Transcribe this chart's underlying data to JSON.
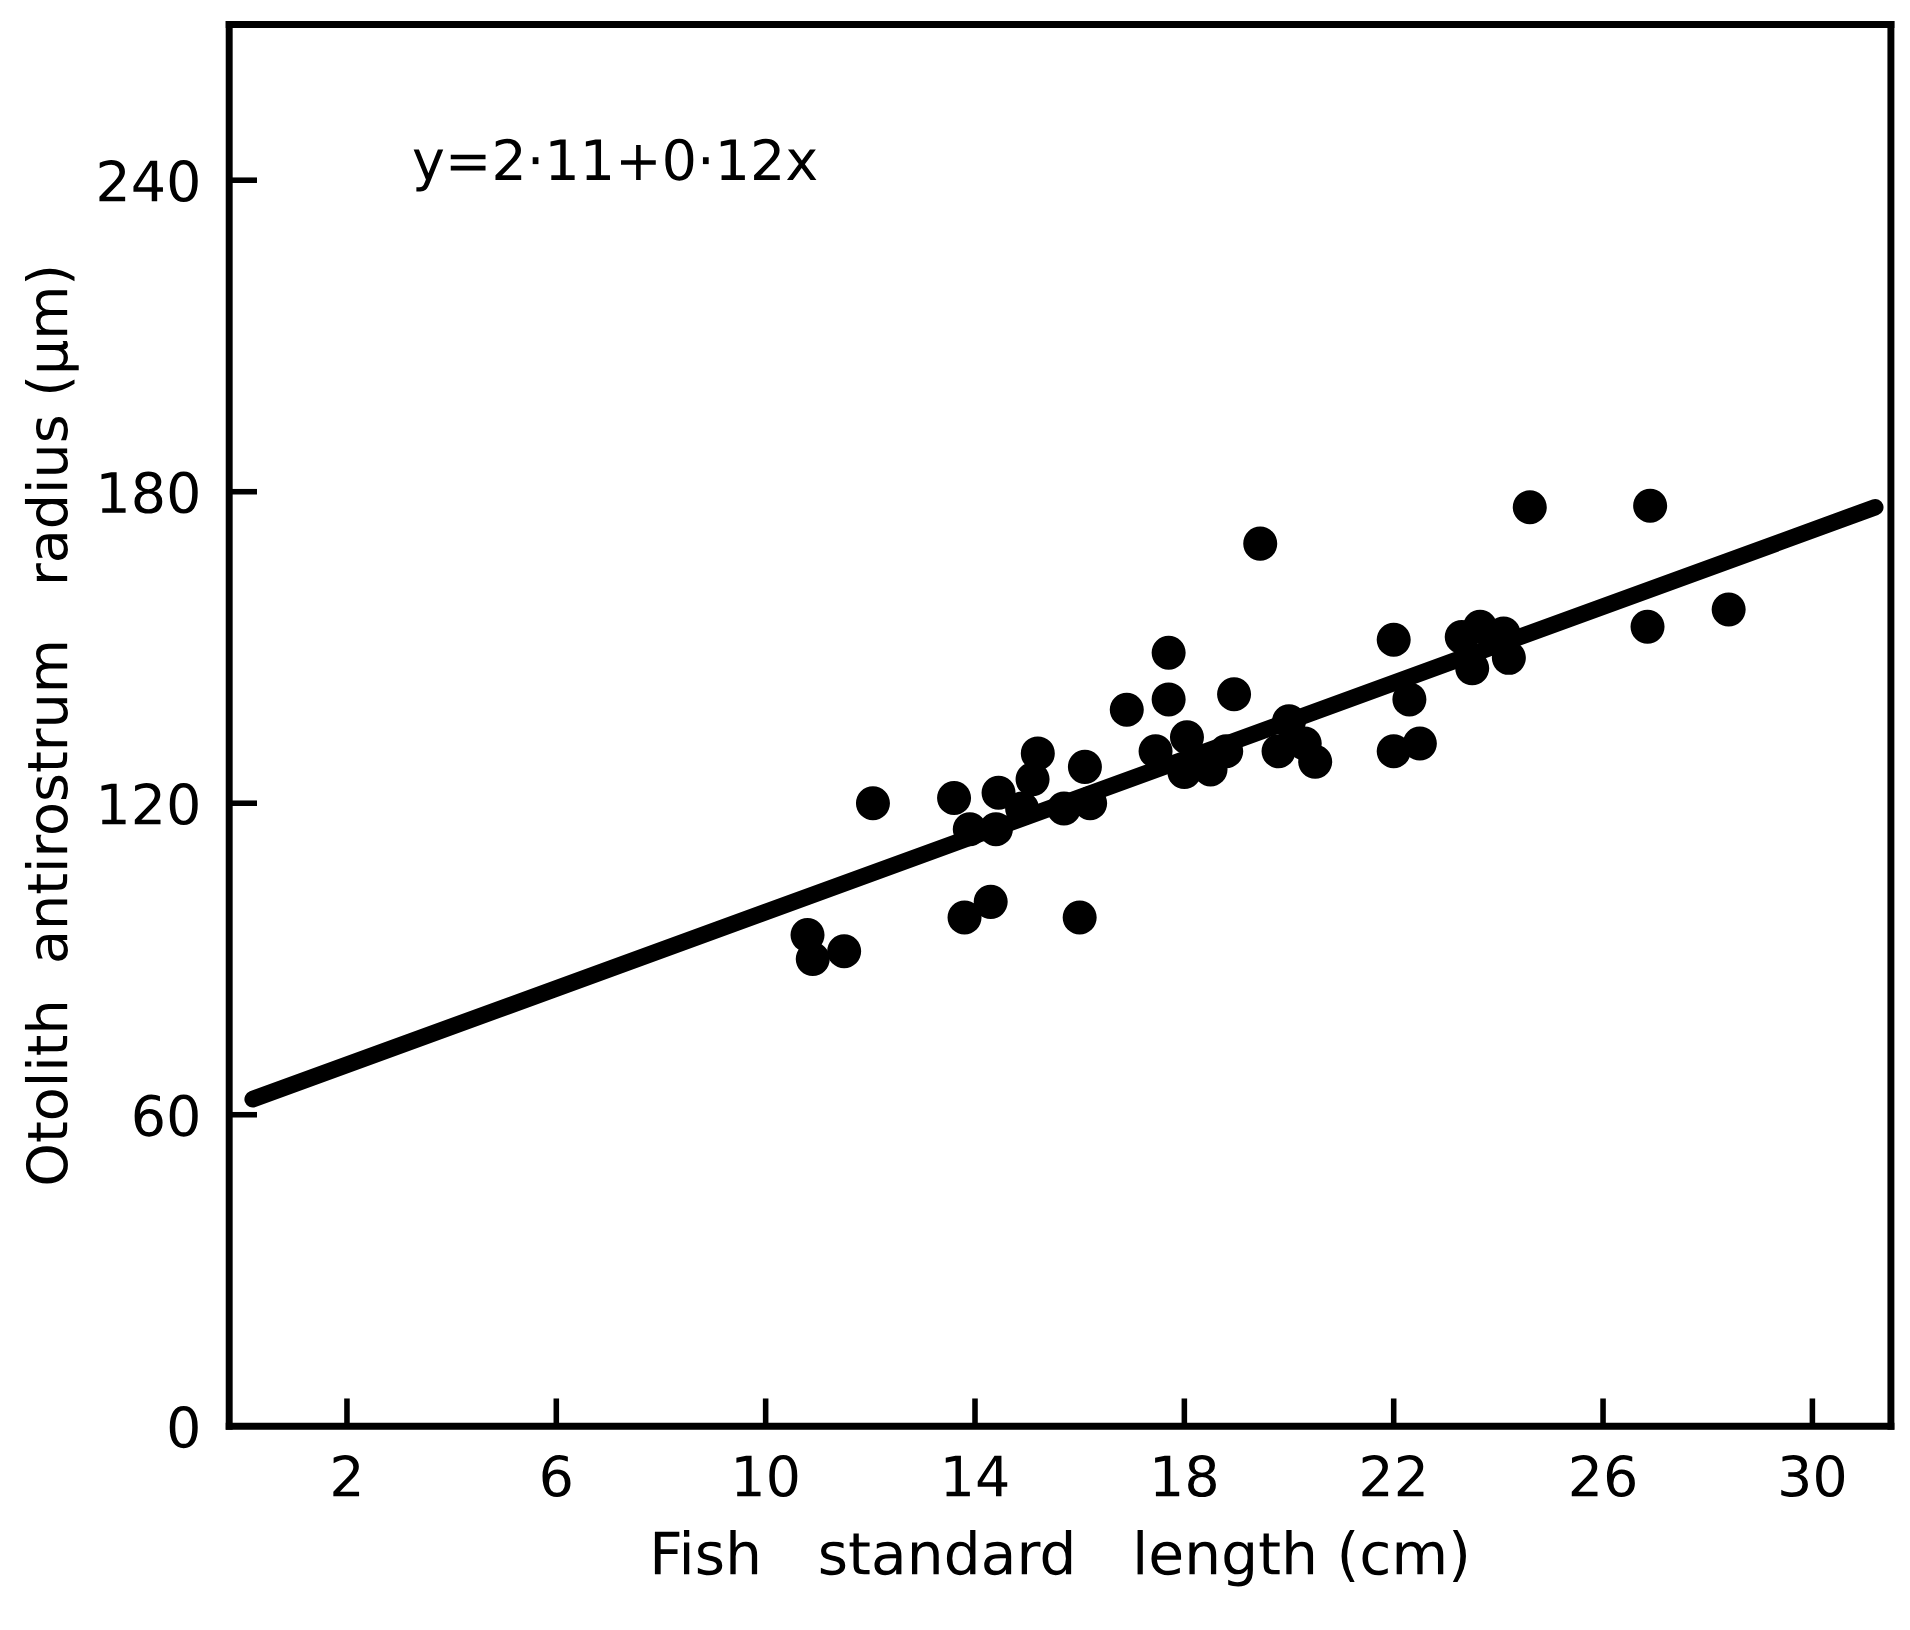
{
  "chart_data": {
    "type": "scatter",
    "xlabel": "Fish   standard   length (cm)",
    "ylabel": "Otolith  antirostrum   radius (µm)",
    "annotations": [
      "y=2·11+0·12x"
    ],
    "xlim": [
      -0.25,
      31.5
    ],
    "xticks": [
      2,
      6,
      10,
      14,
      18,
      22,
      26,
      30
    ],
    "ylim": [
      0,
      270
    ],
    "yticks": [
      0,
      60,
      120,
      180,
      240
    ],
    "grid": false,
    "marker": "circle",
    "series": [
      {
        "color": "#000000",
        "x": [
          12.05,
          10.8,
          10.9,
          11.5,
          13.6,
          13.9,
          14.4,
          14.45,
          13.8,
          14.3,
          14.9,
          15.1,
          15.2,
          15.7,
          16.2,
          16.1,
          16.0,
          16.9,
          17.7,
          17.7,
          17.45,
          18.05,
          18.0,
          18.5,
          18.8,
          18.95,
          19.45,
          20.0,
          19.8,
          20.3,
          20.5,
          22.0,
          22.3,
          22.0,
          22.5,
          23.3,
          23.65,
          24.1,
          23.5,
          24.2,
          24.6,
          26.9,
          26.85,
          28.4
        ],
        "values": [
          120,
          94.6,
          90,
          91.5,
          121,
          115,
          115,
          122,
          98,
          101,
          119,
          124.6,
          129.6,
          119,
          120,
          127,
          98,
          138,
          149,
          140,
          130,
          132.7,
          126,
          126.5,
          130,
          141,
          170,
          135.8,
          130,
          131.5,
          128,
          151.5,
          140,
          130,
          131.5,
          152,
          154,
          152.7,
          146,
          148,
          177,
          177.3,
          154,
          157.3
        ]
      },
      {
        "type": "line",
        "color": "#000000",
        "x": [
          0.2,
          31.2
        ],
        "values": [
          63,
          177
        ],
        "marker": "none",
        "line_style": "solid"
      }
    ]
  }
}
